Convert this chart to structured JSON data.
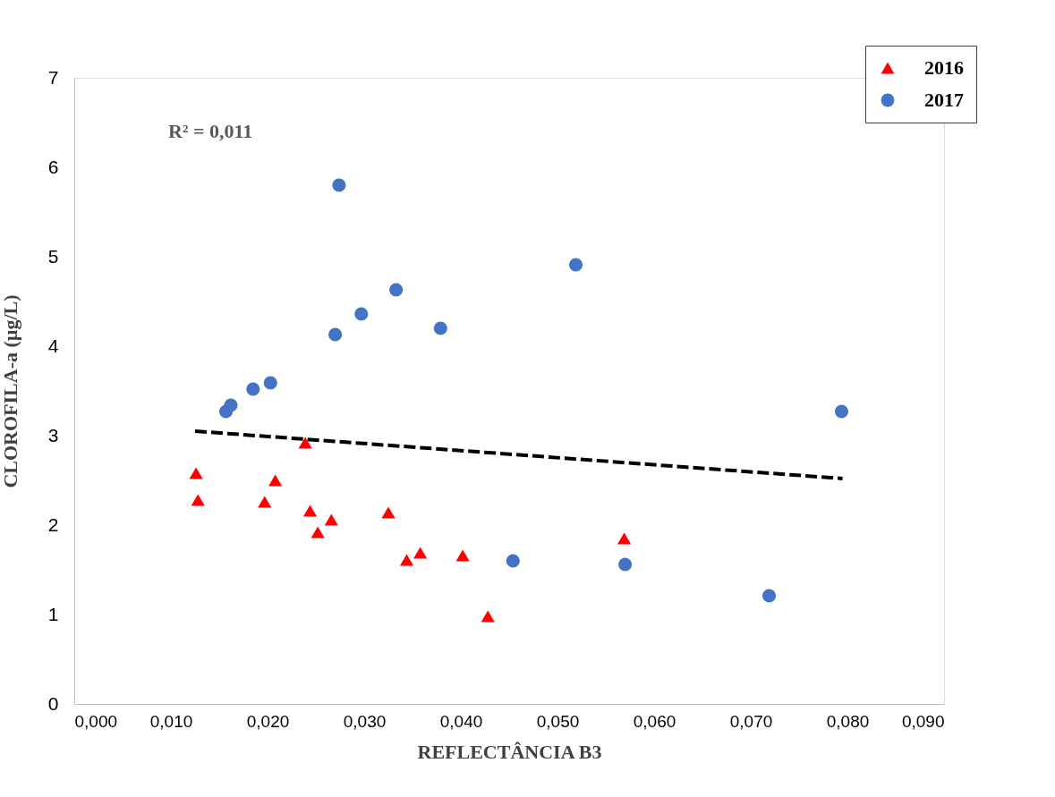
{
  "chart_data": {
    "type": "scatter",
    "xlabel": "REFLECTÂNCIA B3",
    "ylabel": "CLOROFILA-a (µg/L)",
    "annotations": [
      "R² = 0,011"
    ],
    "xlim": [
      0,
      0.09
    ],
    "xticks": [
      {
        "value": 0,
        "label": "0,000"
      },
      {
        "value": 0.01,
        "label": "0,010"
      },
      {
        "value": 0.02,
        "label": "0,020"
      },
      {
        "value": 0.03,
        "label": "0,030"
      },
      {
        "value": 0.04,
        "label": "0,040"
      },
      {
        "value": 0.05,
        "label": "0,050"
      },
      {
        "value": 0.06,
        "label": "0,060"
      },
      {
        "value": 0.07,
        "label": "0,070"
      },
      {
        "value": 0.08,
        "label": "0,080"
      },
      {
        "value": 0.09,
        "label": "0,090"
      }
    ],
    "ylim": [
      0,
      7
    ],
    "yticks": [
      0,
      1,
      2,
      3,
      4,
      5,
      6,
      7
    ],
    "grid": false,
    "legend": "top right",
    "series": [
      {
        "name": "2016",
        "color": "#ff0000",
        "marker": "triangle",
        "x": [
          0.0126,
          0.0128,
          0.0197,
          0.0208,
          0.0239,
          0.0244,
          0.0252,
          0.0266,
          0.0325,
          0.0344,
          0.0358,
          0.0402,
          0.0428,
          0.0569
        ],
        "values": [
          2.58,
          2.28,
          2.26,
          2.5,
          2.92,
          2.16,
          1.92,
          2.06,
          2.14,
          1.61,
          1.69,
          1.66,
          0.98,
          1.85
        ]
      },
      {
        "name": "2017",
        "color": "#4472c4",
        "marker": "circle",
        "x": [
          0.0157,
          0.0162,
          0.0185,
          0.0203,
          0.027,
          0.0274,
          0.0297,
          0.0333,
          0.0379,
          0.0454,
          0.0519,
          0.057,
          0.0719,
          0.0794
        ],
        "values": [
          3.27,
          3.34,
          3.52,
          3.59,
          4.13,
          5.8,
          4.36,
          4.63,
          4.2,
          1.6,
          4.91,
          1.56,
          1.21,
          3.27
        ]
      },
      {
        "type": "line",
        "color": "#000000",
        "line_style": "dashed",
        "x": [
          0.0125,
          0.0795
        ],
        "values": [
          3.05,
          2.52
        ]
      }
    ]
  }
}
